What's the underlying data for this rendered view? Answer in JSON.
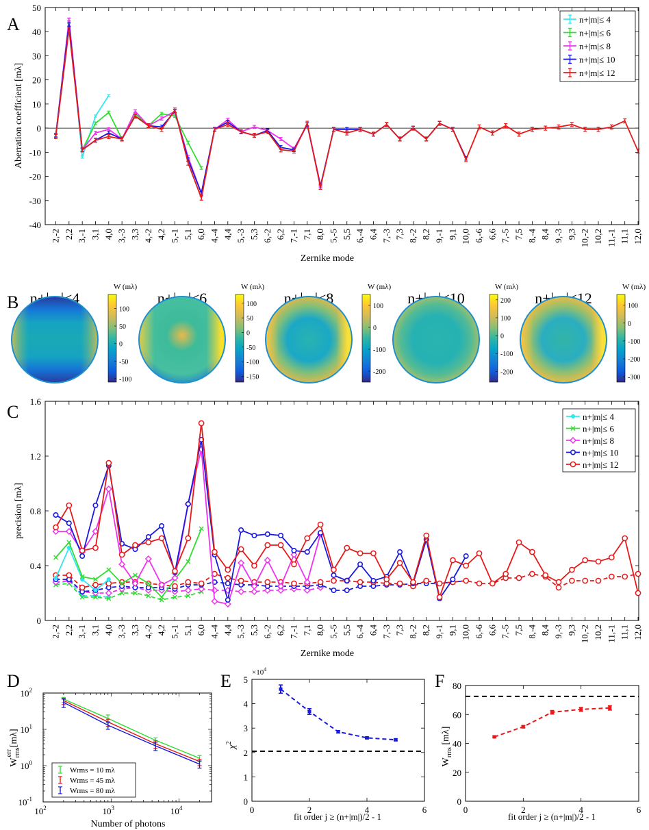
{
  "panel_labels": {
    "A": "A",
    "B": "B",
    "C": "C",
    "D": "D",
    "E": "E",
    "F": "F"
  },
  "modes": [
    "2,-2",
    "2,2",
    "3,-1",
    "3,1",
    "4,0",
    "3,-3",
    "3,3",
    "4,-2",
    "4,2",
    "5,-1",
    "5,1",
    "6,0",
    "4,-4",
    "4,4",
    "5,-3",
    "5,3",
    "6,-2",
    "6,2",
    "7,-1",
    "7,1",
    "8,0",
    "5,-5",
    "5,5",
    "6,-4",
    "6,4",
    "7,-3",
    "7,3",
    "8,-2",
    "8,2",
    "9,-1",
    "9,1",
    "10,0",
    "6,-6",
    "6,6",
    "7,-5",
    "7,5",
    "8,-4",
    "8,4",
    "9,-3",
    "9,3",
    "10,-2",
    "10,2",
    "11,-1",
    "11,1",
    "12,0"
  ],
  "colors": {
    "c4": "#33e6f0",
    "c6": "#33dd33",
    "c8": "#ee33ee",
    "c10": "#1a1adc",
    "c12": "#e61a1a"
  },
  "chart_data": [
    {
      "id": "A",
      "type": "line",
      "xlabel": "Zernike mode",
      "ylabel": "Aberration coefficient [mλ]",
      "ylim": [
        -40,
        50
      ],
      "yticks": [
        -40,
        -30,
        -20,
        -10,
        0,
        10,
        20,
        30,
        40,
        50
      ],
      "legend": "top-right",
      "series": [
        {
          "name": "n+|m|≤ 4",
          "color": "#33e6f0",
          "values": [
            -3,
            45,
            -12,
            5,
            13.5
          ]
        },
        {
          "name": "n+|m|≤ 6",
          "color": "#33dd33",
          "values": [
            -3,
            44,
            -9,
            2,
            6.5,
            -4.5,
            6,
            1,
            6,
            5,
            -6,
            -16.5
          ]
        },
        {
          "name": "n+|m|≤ 8",
          "color": "#ee33ee",
          "values": [
            -3,
            45,
            -9,
            -2,
            -0.5,
            -4.5,
            7,
            1,
            4,
            7,
            -12,
            -27,
            -0.5,
            3.5,
            -1.5,
            0.5,
            -1,
            -4.5,
            -8.5,
            1.5,
            -23.5
          ]
        },
        {
          "name": "n+|m|≤ 10",
          "color": "#1a1adc",
          "values": [
            -3,
            43,
            -9,
            -5,
            -2,
            -4.5,
            5,
            1,
            0.5,
            7,
            -13,
            -27,
            -0.5,
            2.5,
            -1.5,
            -3,
            -1,
            -8,
            -9,
            1.5,
            -24,
            -0.5,
            -0.5,
            -0.5,
            -2.5,
            1.5,
            -4.5,
            0,
            -4.5,
            2,
            -0.5,
            -12.5
          ]
        },
        {
          "name": "n+|m|≤ 12",
          "color": "#e61a1a",
          "values": [
            -3.5,
            41,
            -9,
            -5,
            -3.5,
            -4.5,
            5,
            1,
            -0.5,
            7.5,
            -14.5,
            -29,
            -0.5,
            1.5,
            -1.5,
            -3,
            -1.5,
            -9,
            -9.5,
            2,
            -24.5,
            -0.5,
            -2,
            -0.5,
            -2.5,
            1.5,
            -4.5,
            0,
            -4.5,
            2,
            -0.5,
            -13,
            0.5,
            -2,
            1,
            -2.5,
            -0.5,
            0,
            0.5,
            1.5,
            -0.5,
            -0.5,
            0.5,
            3,
            -9.5
          ]
        }
      ]
    },
    {
      "id": "B",
      "type": "heatmap",
      "colorbar_label": "W (mλ)",
      "maps": [
        {
          "title": "n+|m|≤4",
          "ticks": [
            100,
            50,
            0,
            -50,
            -100
          ],
          "clim": [
            -110,
            140
          ]
        },
        {
          "title": "n+|m|≤6",
          "ticks": [
            100,
            50,
            0,
            -50,
            -100,
            -150
          ],
          "clim": [
            -170,
            130
          ]
        },
        {
          "title": "n+|m|≤8",
          "ticks": [
            100,
            0,
            -100,
            -200
          ],
          "clim": [
            -250,
            150
          ]
        },
        {
          "title": "n+|m|≤10",
          "ticks": [
            200,
            100,
            0,
            -100,
            -200
          ],
          "clim": [
            -260,
            230
          ]
        },
        {
          "title": "n+|m|≤12",
          "ticks": [
            100,
            0,
            -100,
            -200,
            -300
          ],
          "clim": [
            -330,
            160
          ]
        }
      ]
    },
    {
      "id": "C",
      "type": "line",
      "xlabel": "Zernike mode",
      "ylabel": "precision [mλ]",
      "ylim": [
        0,
        1.6
      ],
      "yticks": [
        0,
        0.4,
        0.8,
        1.2,
        1.6
      ],
      "legend": "top-right",
      "series": [
        {
          "name": "n+|m|≤ 4",
          "color": "#33e6f0",
          "marker": "dot",
          "values": [
            0.31,
            0.53,
            0.3,
            0.22,
            0.3
          ]
        },
        {
          "name": "n+|m|≤ 6",
          "color": "#33dd33",
          "marker": "x",
          "values": [
            0.46,
            0.57,
            0.32,
            0.3,
            0.37,
            0.27,
            0.33,
            0.27,
            0.17,
            0.3,
            0.43,
            0.67
          ]
        },
        {
          "name": "n+|m|≤ 8",
          "color": "#ee33ee",
          "marker": "diamond",
          "values": [
            0.65,
            0.65,
            0.5,
            0.65,
            0.96,
            0.41,
            0.27,
            0.45,
            0.26,
            0.31,
            0.85,
            1.25,
            0.14,
            0.12,
            0.42,
            0.25,
            0.44,
            0.25,
            0.48,
            0.28,
            0.63
          ]
        },
        {
          "name": "n+|m|≤ 10",
          "color": "#1a1adc",
          "marker": "circle",
          "values": [
            0.77,
            0.71,
            0.47,
            0.84,
            1.13,
            0.56,
            0.52,
            0.61,
            0.69,
            0.35,
            0.85,
            1.32,
            0.48,
            0.15,
            0.66,
            0.62,
            0.63,
            0.62,
            0.51,
            0.5,
            0.64,
            0.33,
            0.29,
            0.41,
            0.29,
            0.32,
            0.5,
            0.27,
            0.59,
            0.16,
            0.3,
            0.47
          ]
        },
        {
          "name": "n+|m|≤ 12",
          "color": "#e61a1a",
          "marker": "circle-open",
          "values": [
            0.68,
            0.84,
            0.51,
            0.53,
            1.15,
            0.48,
            0.55,
            0.57,
            0.6,
            0.36,
            0.6,
            1.44,
            0.5,
            0.37,
            0.52,
            0.4,
            0.55,
            0.55,
            0.41,
            0.6,
            0.7,
            0.37,
            0.53,
            0.49,
            0.49,
            0.3,
            0.42,
            0.28,
            0.62,
            0.17,
            0.44,
            0.4,
            0.49,
            0.27,
            0.34,
            0.57,
            0.5,
            0.33,
            0.28,
            0.37,
            0.44,
            0.43,
            0.46,
            0.6,
            0.2
          ]
        }
      ],
      "dashed_series": [
        {
          "color": "#33e6f0",
          "values": [
            0.27,
            0.29,
            0.18,
            0.18,
            0.17
          ]
        },
        {
          "color": "#33dd33",
          "values": [
            0.26,
            0.27,
            0.17,
            0.17,
            0.16,
            0.2,
            0.2,
            0.18,
            0.15,
            0.17,
            0.18,
            0.21
          ]
        },
        {
          "color": "#ee33ee",
          "values": [
            0.28,
            0.29,
            0.21,
            0.2,
            0.2,
            0.23,
            0.24,
            0.22,
            0.22,
            0.21,
            0.22,
            0.23,
            0.22,
            0.22,
            0.21,
            0.21,
            0.22,
            0.22,
            0.23,
            0.22,
            0.24
          ]
        },
        {
          "color": "#1a1adc",
          "values": [
            0.3,
            0.3,
            0.21,
            0.22,
            0.24,
            0.25,
            0.24,
            0.24,
            0.24,
            0.23,
            0.26,
            0.26,
            0.28,
            0.27,
            0.26,
            0.26,
            0.25,
            0.25,
            0.25,
            0.25,
            0.26,
            0.22,
            0.22,
            0.25,
            0.25,
            0.26,
            0.26,
            0.27,
            0.27,
            0.27,
            0.28,
            0.29
          ]
        },
        {
          "color": "#e61a1a",
          "values": [
            0.33,
            0.33,
            0.24,
            0.26,
            0.27,
            0.28,
            0.28,
            0.27,
            0.26,
            0.25,
            0.28,
            0.27,
            0.34,
            0.31,
            0.29,
            0.28,
            0.28,
            0.28,
            0.27,
            0.27,
            0.28,
            0.29,
            0.29,
            0.28,
            0.28,
            0.27,
            0.27,
            0.25,
            0.29,
            0.27,
            0.28,
            0.29,
            0.27,
            0.27,
            0.31,
            0.31,
            0.34,
            0.32,
            0.24,
            0.29,
            0.29,
            0.29,
            0.32,
            0.32,
            0.34
          ]
        }
      ]
    },
    {
      "id": "D",
      "type": "line",
      "xscale": "log",
      "yscale": "log",
      "xlabel": "Number of photons",
      "ylabel": "W",
      "ylabel_sup": "err",
      "ylabel_sub": "rms",
      "ylabel_unit": "[mλ]",
      "xlim": [
        100,
        30000
      ],
      "ylim": [
        0.1,
        100
      ],
      "xticks": [
        {
          "v": 100,
          "mant": "10",
          "exp": "2"
        },
        {
          "v": 1000,
          "mant": "10",
          "exp": "3"
        },
        {
          "v": 10000,
          "mant": "10",
          "exp": "4"
        }
      ],
      "yticks": [
        {
          "v": 0.1,
          "mant": "10",
          "exp": "-1"
        },
        {
          "v": 1,
          "mant": "10",
          "exp": "0"
        },
        {
          "v": 10,
          "mant": "10",
          "exp": "1"
        },
        {
          "v": 100,
          "mant": "10",
          "exp": "2"
        }
      ],
      "legend": "bottom-left",
      "x": [
        200,
        900,
        4500,
        20000
      ],
      "series": [
        {
          "name": "Wrms = 10 mλ",
          "color": "#33dd33",
          "values": [
            68,
            20,
            5,
            1.6
          ],
          "err_lo": [
            55,
            15,
            4,
            1.3
          ],
          "err_hi": [
            76,
            25,
            5.8,
            1.9
          ]
        },
        {
          "name": "Wrms = 45 mλ",
          "color": "#e61a1a",
          "values": [
            62,
            16,
            4,
            1.3
          ],
          "err_lo": [
            48,
            12,
            3,
            1.0
          ],
          "err_hi": [
            72,
            19,
            4.8,
            1.5
          ]
        },
        {
          "name": "Wrms = 80 mλ",
          "color": "#1a1adc",
          "values": [
            55,
            13,
            3.5,
            1.1
          ],
          "err_lo": [
            40,
            10,
            2.6,
            0.85
          ],
          "err_hi": [
            68,
            16,
            4.4,
            1.35
          ]
        }
      ]
    },
    {
      "id": "E",
      "type": "line",
      "xlabel": "fit order j ≥ (n+|m|)/2 - 1",
      "ylabel": "χ",
      "ylabel_sup": "2",
      "scale_label": "×10",
      "scale_exp": "4",
      "xlim": [
        0,
        6
      ],
      "ylim": [
        0,
        5
      ],
      "xticks": [
        0,
        2,
        4,
        6
      ],
      "yticks": [
        0,
        1,
        2,
        3,
        4,
        5
      ],
      "hline": 2.05,
      "color": "#1a1adc",
      "x": [
        1,
        2,
        3,
        4,
        5
      ],
      "values": [
        4.6,
        3.68,
        2.85,
        2.6,
        2.52
      ],
      "err": [
        0.17,
        0.12,
        0.05,
        0.04,
        0.04
      ]
    },
    {
      "id": "F",
      "type": "line",
      "xlabel": "fit order j ≥ (n+|m|)/2 - 1",
      "ylabel": "W",
      "ylabel_sub": "rms",
      "ylabel_unit": " [mλ]",
      "xlim": [
        0,
        6
      ],
      "ylim": [
        0,
        80
      ],
      "xticks": [
        0,
        2,
        4,
        6
      ],
      "yticks": [
        0,
        20,
        40,
        60,
        80
      ],
      "hline": 72.5,
      "color": "#e61a1a",
      "x": [
        1,
        2,
        3,
        4,
        5
      ],
      "values": [
        44.5,
        51.5,
        61.5,
        63.5,
        64.5
      ],
      "err": [
        0.6,
        0.8,
        1.2,
        1.3,
        1.5
      ]
    }
  ]
}
